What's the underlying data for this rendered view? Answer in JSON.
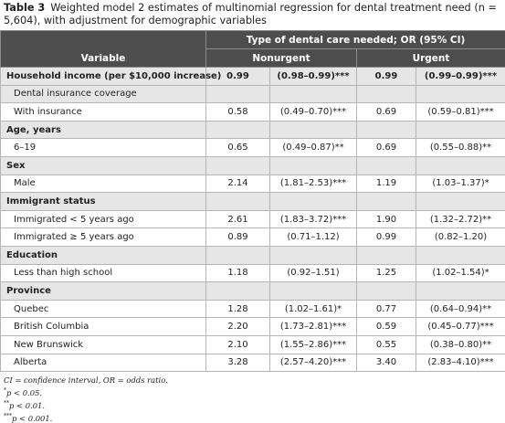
{
  "title": {
    "label": "Table 3",
    "text": "Weighted model 2 estimates of multinomial regression for dental treatment need (n = 5,604), with adjustment for demographic variables"
  },
  "table": {
    "header": {
      "variable": "Variable",
      "span": "Type of dental care needed; OR (95% CI)",
      "groups": [
        "Nonurgent",
        "Urgent"
      ]
    },
    "groups": [
      {
        "heading": [
          "Household income (per $10,000 increase)",
          "0.99",
          "(0.98–0.99)***",
          "0.99",
          "(0.99–0.99)***"
        ]
      },
      {
        "subheading": "Dental insurance coverage",
        "rows": [
          [
            "With insurance",
            "0.58",
            "(0.49–0.70)***",
            "0.69",
            "(0.59–0.81)***"
          ]
        ]
      },
      {
        "heading": "Age, years",
        "rows": [
          [
            "6–19",
            "0.65",
            "(0.49–0.87)**",
            "0.69",
            "(0.55–0.88)**"
          ]
        ]
      },
      {
        "heading": "Sex",
        "rows": [
          [
            "Male",
            "2.14",
            "(1.81–2.53)***",
            "1.19",
            "(1.03–1.37)*"
          ]
        ]
      },
      {
        "heading": "Immigrant status",
        "rows": [
          [
            "Immigrated < 5 years ago",
            "2.61",
            "(1.83–3.72)***",
            "1.90",
            "(1.32–2.72)**"
          ],
          [
            "Immigrated ≥ 5 years ago",
            "0.89",
            "(0.71–1.12)",
            "0.99",
            "(0.82–1.20)"
          ]
        ]
      },
      {
        "heading": "Education",
        "rows": [
          [
            "Less than high school",
            "1.18",
            "(0.92–1.51)",
            "1.25",
            "(1.02–1.54)*"
          ]
        ]
      },
      {
        "heading": "Province",
        "rows": [
          [
            "Quebec",
            "1.28",
            "(1.02–1.61)*",
            "0.77",
            "(0.64–0.94)**"
          ],
          [
            "British Columbia",
            "2.20",
            "(1.73–2.81)***",
            "0.59",
            "(0.45–0.77)***"
          ],
          [
            "New Brunswick",
            "2.10",
            "(1.55–2.86)***",
            "0.55",
            "(0.38–0.80)**"
          ],
          [
            "Alberta",
            "3.28",
            "(2.57–4.20)***",
            "3.40",
            "(2.83–4.10)***"
          ]
        ]
      }
    ]
  },
  "notes": [
    {
      "text": "CI = confidence interval, OR = odds ratio."
    },
    {
      "mark": "*",
      "text": "p < 0.05."
    },
    {
      "mark": "**",
      "text": "p < 0.01."
    },
    {
      "mark": "***",
      "text": "p < 0.001."
    }
  ]
}
